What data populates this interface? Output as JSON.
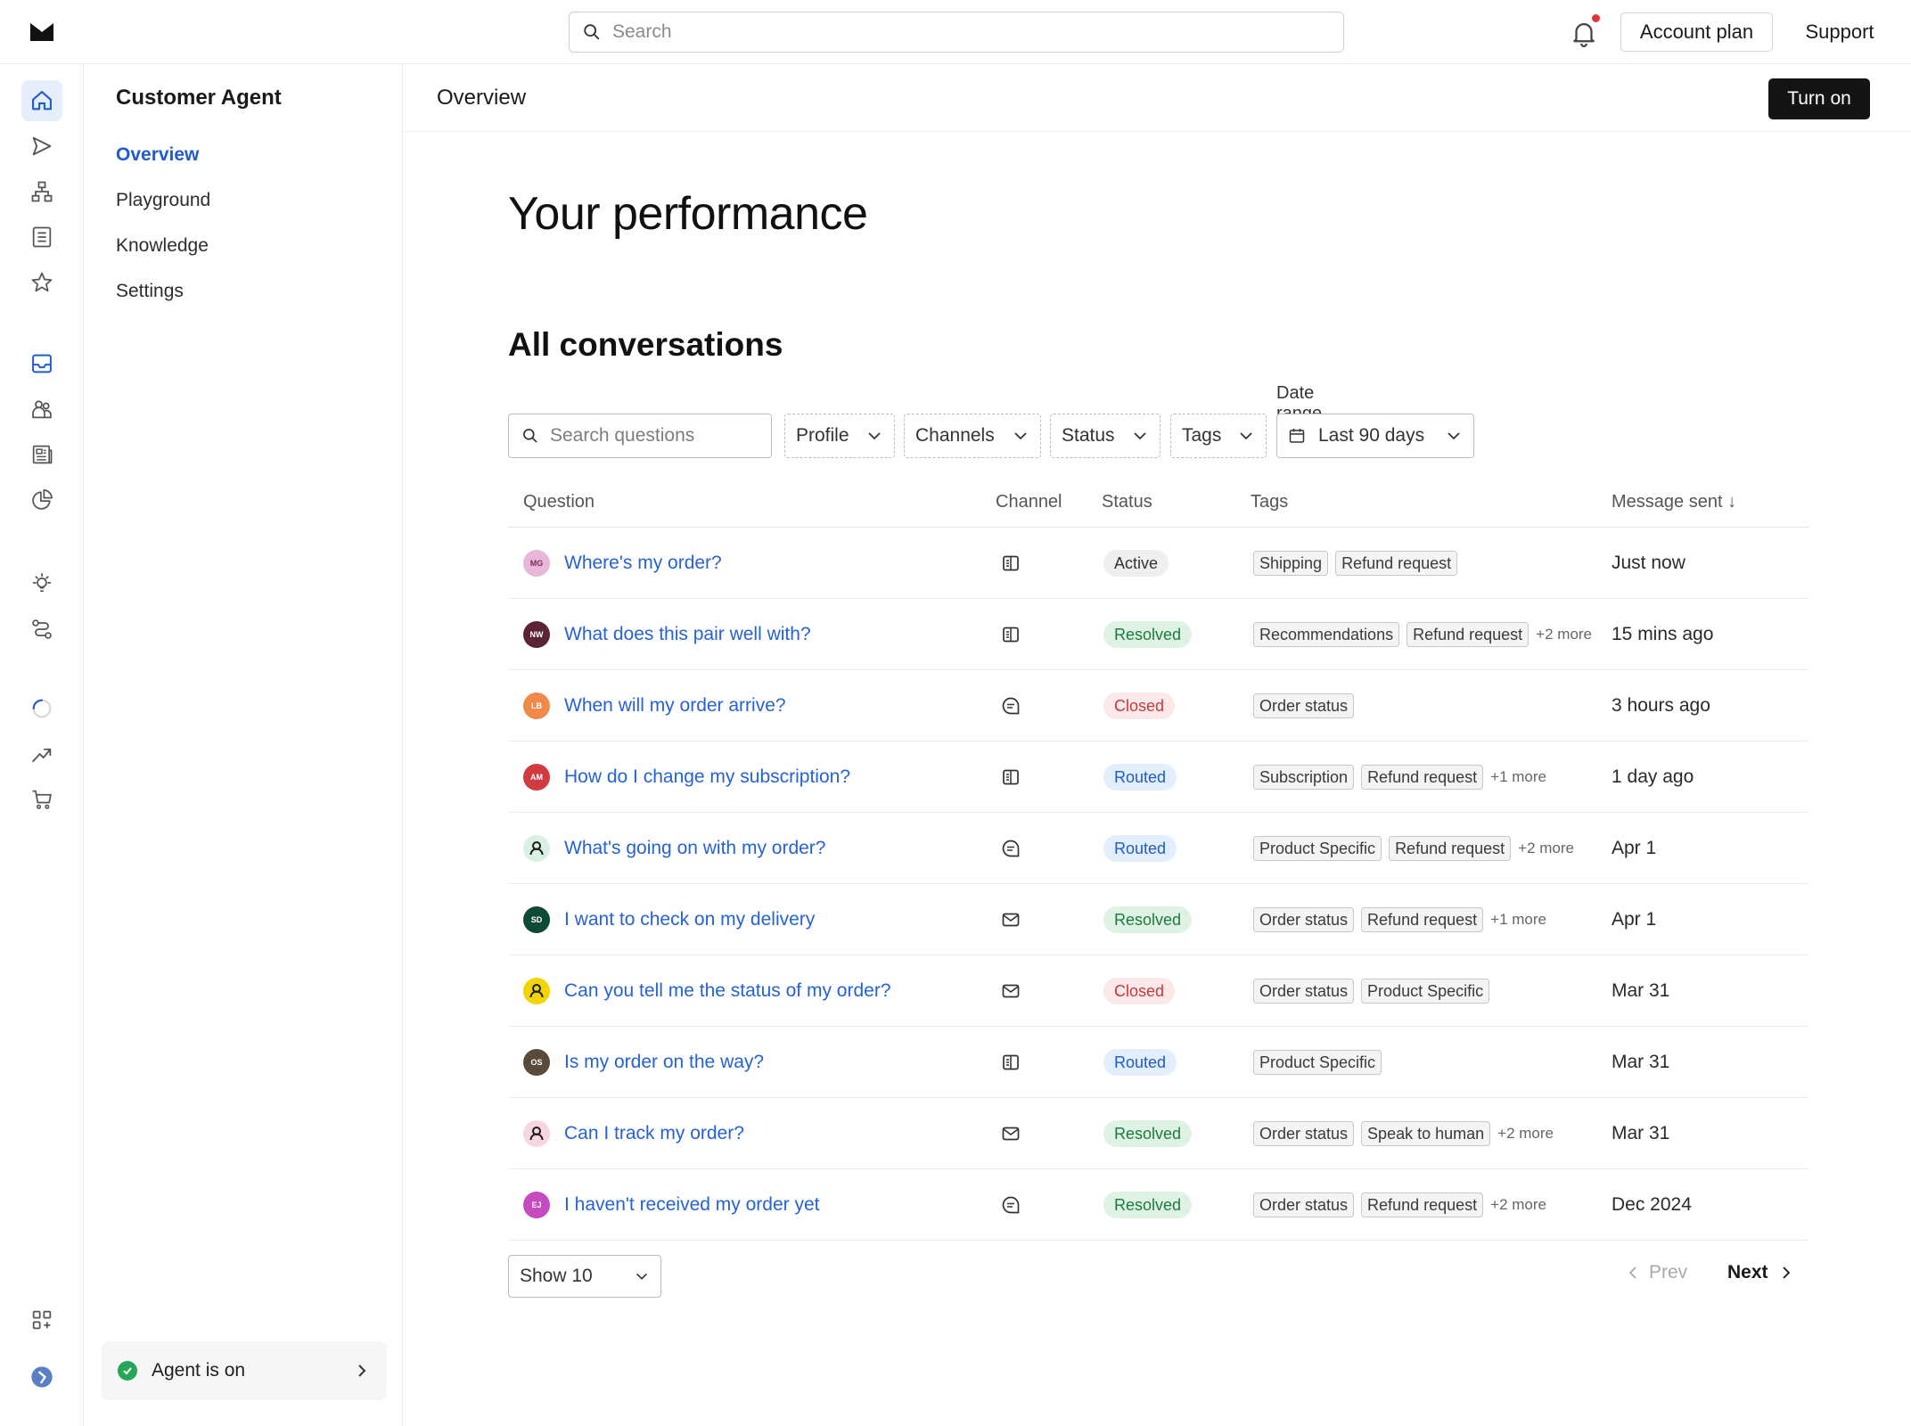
{
  "topbar": {
    "search_placeholder": "Search",
    "account_plan": "Account plan",
    "support": "Support"
  },
  "rail": {
    "icons": [
      "home-icon",
      "send-icon",
      "org-chart-icon",
      "document-list-icon",
      "star-icon",
      "inbox-icon",
      "people-icon",
      "newspaper-icon",
      "pie-chart-icon",
      "lightbulb-icon",
      "flow-icon",
      "loading-circle-icon",
      "trend-up-icon",
      "cart-icon",
      "apps-icon",
      "avatar-icon"
    ],
    "accent": "#1f5bd1"
  },
  "subnav": {
    "title": "Customer Agent",
    "items": [
      "Overview",
      "Playground",
      "Knowledge",
      "Settings"
    ],
    "agent_status": "Agent is on"
  },
  "main": {
    "page_title": "Overview",
    "turn_on": "Turn on",
    "heading": "Your performance",
    "section": "All conversations",
    "filters": {
      "search_placeholder": "Search questions",
      "profile": "Profile",
      "channels": "Channels",
      "status": "Status",
      "tags": "Tags",
      "date_label": "Date range",
      "date_value": "Last 90 days"
    },
    "columns": [
      "Question",
      "Channel",
      "Status",
      "Tags",
      "Message sent ↓"
    ],
    "rows": [
      {
        "avatar": "MG",
        "avatar_color": "#e9b7d8",
        "question": "Where's my order?",
        "channel": "chat-panel-icon",
        "status": "Active",
        "status_kind": "active",
        "tags": [
          "Shipping",
          "Refund request"
        ],
        "more": "",
        "sent": "Just now"
      },
      {
        "avatar": "NW",
        "avatar_color": "#5b2334",
        "question": "What does this pair well with?",
        "channel": "chat-panel-icon",
        "status": "Resolved",
        "status_kind": "resolved",
        "tags": [
          "Recommendations",
          "Refund request"
        ],
        "more": "+2 more",
        "sent": "15 mins ago"
      },
      {
        "avatar": "LB",
        "avatar_color": "#ef8a4a",
        "question": "When will my order arrive?",
        "channel": "message-bubble-icon",
        "status": "Closed",
        "status_kind": "closed",
        "tags": [
          "Order status"
        ],
        "more": "",
        "sent": "3 hours ago"
      },
      {
        "avatar": "AM",
        "avatar_color": "#d23a3f",
        "question": "How do I change my subscription?",
        "channel": "chat-panel-icon",
        "status": "Routed",
        "status_kind": "routed",
        "tags": [
          "Subscription",
          "Refund request"
        ],
        "more": "+1 more",
        "sent": "1 day ago"
      },
      {
        "avatar": "",
        "avatar_color": "#d9f1e2",
        "question": "What's going on with my order?",
        "channel": "message-bubble-icon",
        "status": "Routed",
        "status_kind": "routed",
        "tags": [
          "Product Specific",
          "Refund request"
        ],
        "more": "+2 more",
        "sent": "Apr 1"
      },
      {
        "avatar": "SD",
        "avatar_color": "#0f4a37",
        "question": "I want to check on my delivery",
        "channel": "email-icon",
        "status": "Resolved",
        "status_kind": "resolved",
        "tags": [
          "Order status",
          "Refund request"
        ],
        "more": "+1 more",
        "sent": "Apr 1"
      },
      {
        "avatar": "",
        "avatar_color": "#f2d400",
        "question": "Can you tell me the status of my order?",
        "channel": "email-icon",
        "status": "Closed",
        "status_kind": "closed",
        "tags": [
          "Order status",
          "Product Specific"
        ],
        "more": "",
        "sent": "Mar 31"
      },
      {
        "avatar": "OS",
        "avatar_color": "#5a4a3a",
        "question": "Is my order on the way?",
        "channel": "chat-panel-icon",
        "status": "Routed",
        "status_kind": "routed",
        "tags": [
          "Product Specific"
        ],
        "more": "",
        "sent": "Mar 31"
      },
      {
        "avatar": "",
        "avatar_color": "#f7d6e3",
        "question": "Can I track my order?",
        "channel": "email-icon",
        "status": "Resolved",
        "status_kind": "resolved",
        "tags": [
          "Order status",
          "Speak to human"
        ],
        "more": "+2 more",
        "sent": "Mar 31"
      },
      {
        "avatar": "EJ",
        "avatar_color": "#c64bc0",
        "question": "I haven't received my order yet",
        "channel": "message-bubble-icon",
        "status": "Resolved",
        "status_kind": "resolved",
        "tags": [
          "Order status",
          "Refund request"
        ],
        "more": "+2 more",
        "sent": "Dec 2024"
      }
    ],
    "show": "Show 10",
    "prev": "Prev",
    "next": "Next"
  }
}
